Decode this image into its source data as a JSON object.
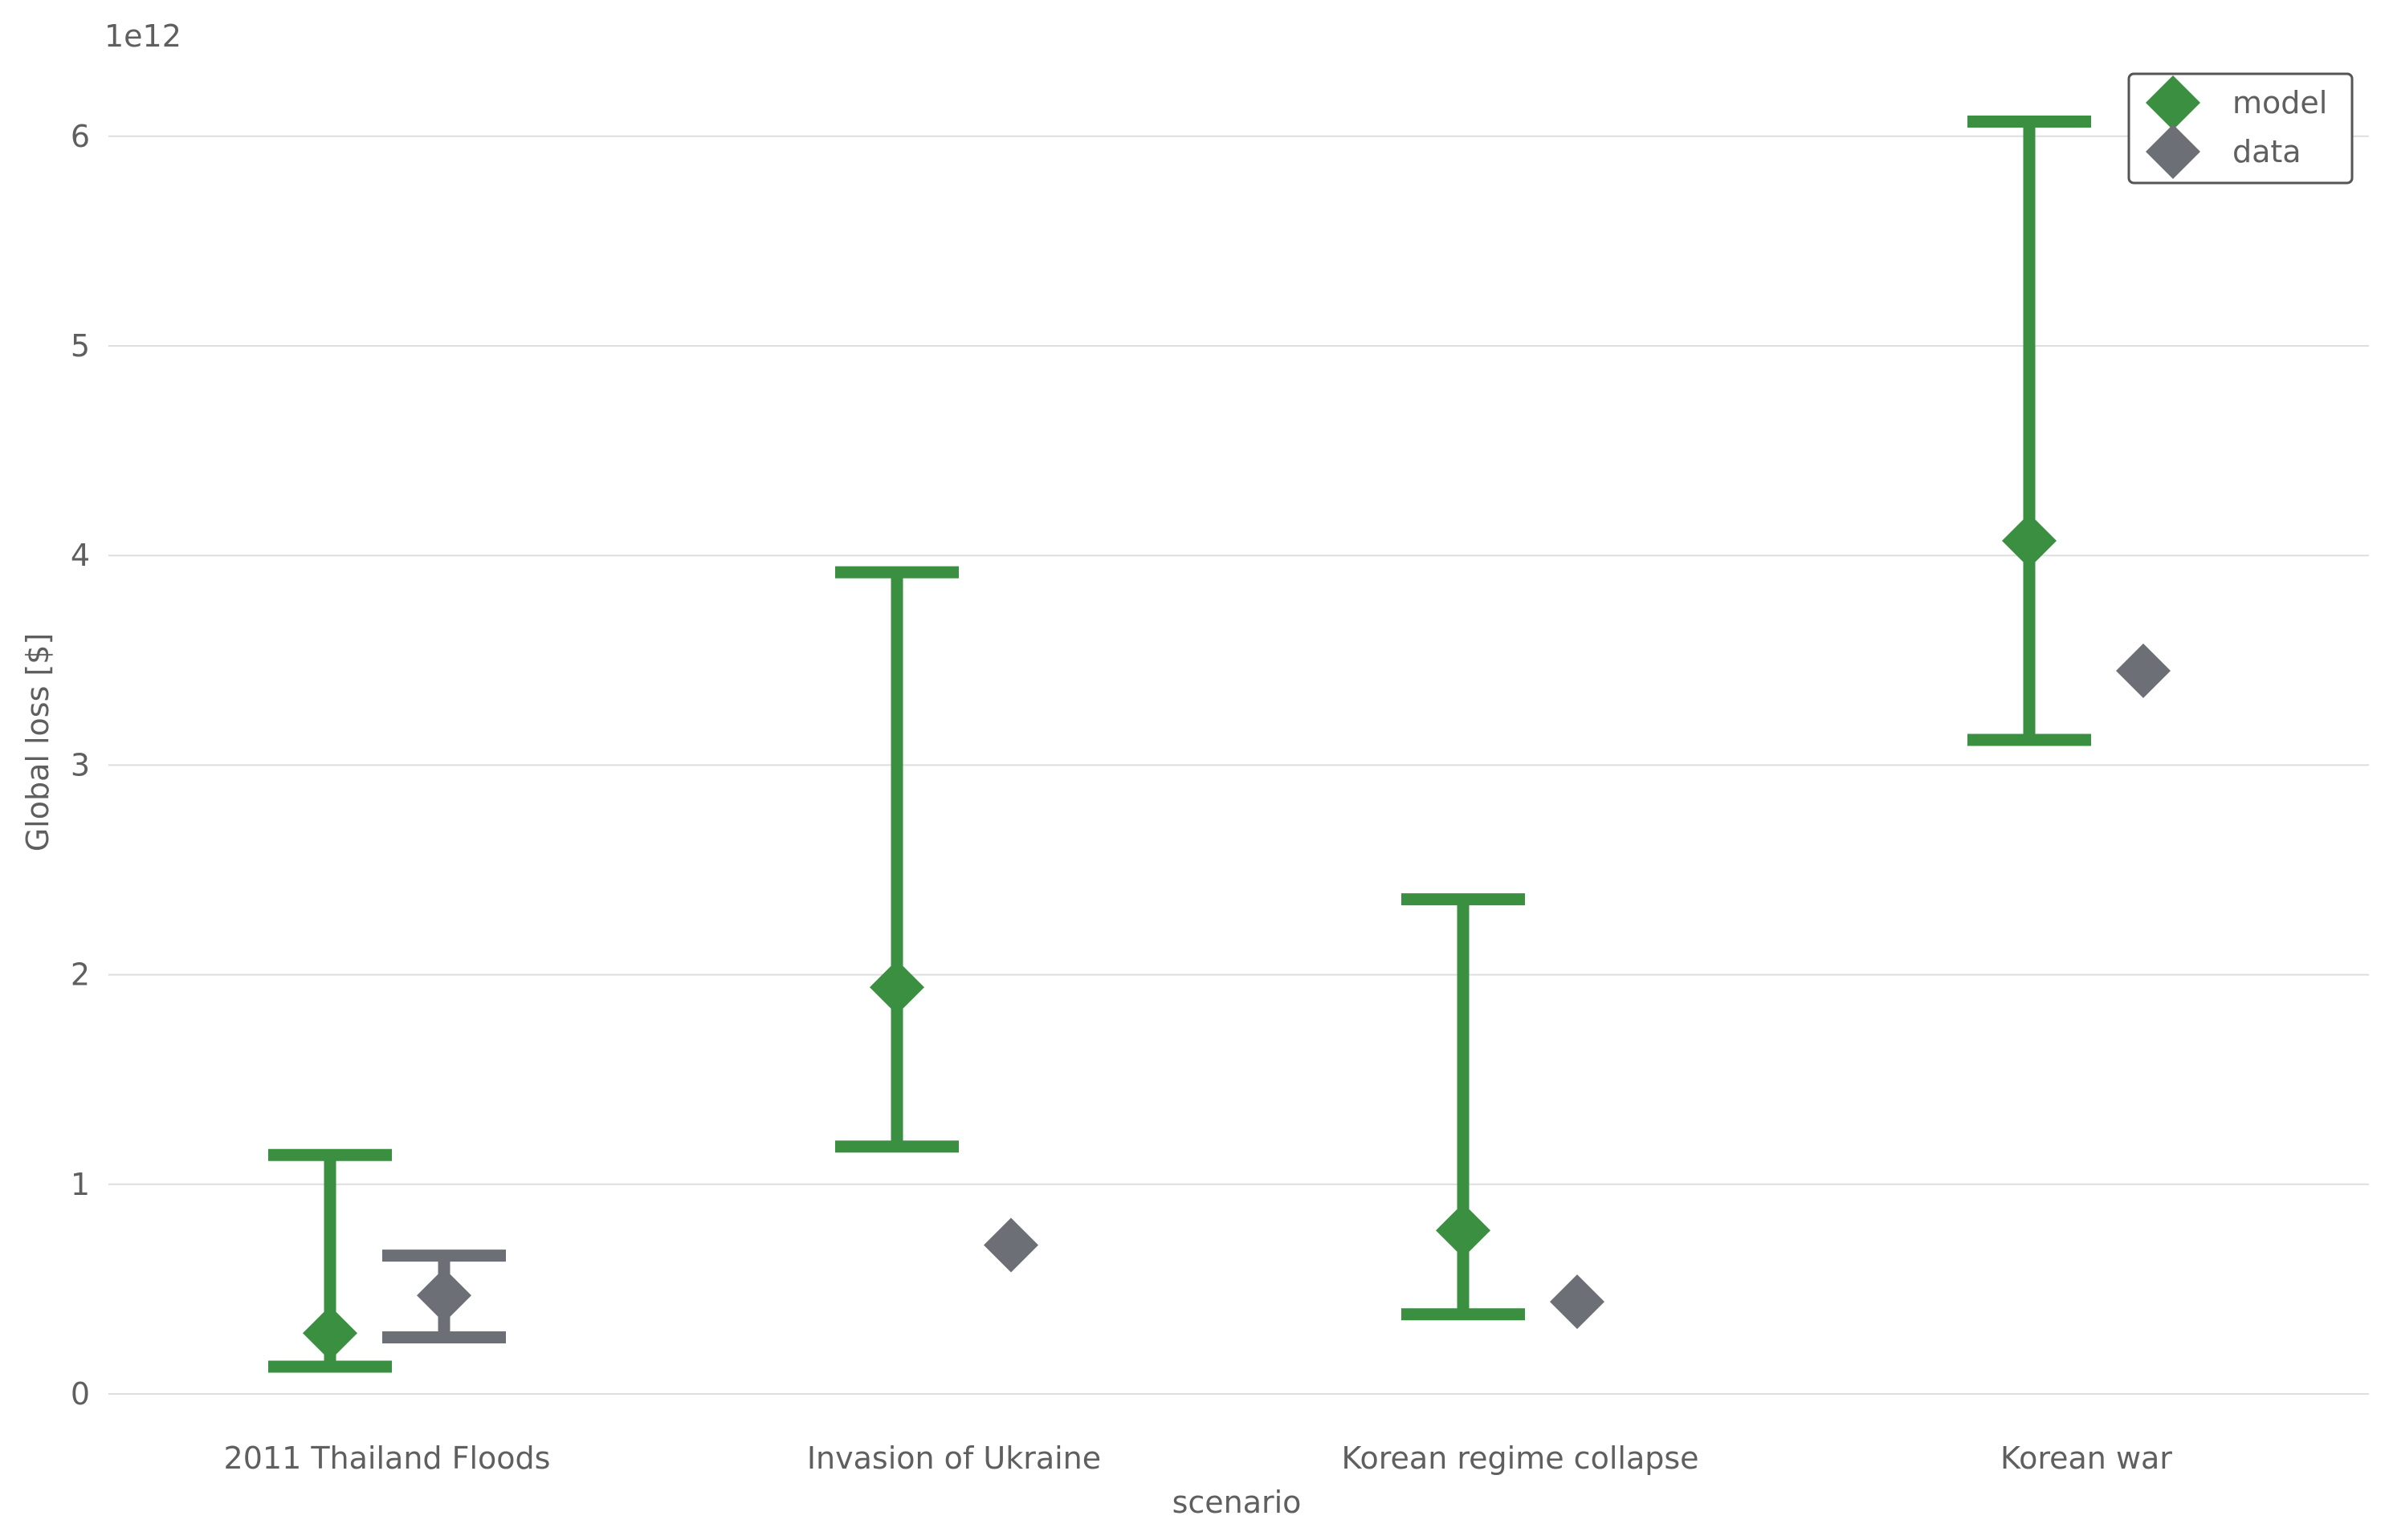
{
  "chart_data": {
    "type": "scatter",
    "xlabel": "scenario",
    "ylabel": "Global loss [$]",
    "y_offset_label": "1e12",
    "y_scale_factor": 1000000000000,
    "ylim": [
      -100000000000,
      6450000000000
    ],
    "yticks": [
      0,
      1000000000000,
      2000000000000,
      3000000000000,
      4000000000000,
      5000000000000,
      6000000000000
    ],
    "ytick_labels": [
      "0",
      "1",
      "2",
      "3",
      "4",
      "5",
      "6"
    ],
    "grid": true,
    "legend_placement": "top-right",
    "categories": [
      "2011 Thailand Floods",
      "Invasion of Ukraine",
      "Korean regime collapse",
      "Korean war"
    ],
    "series": [
      {
        "name": "model",
        "color": "#3a8f40",
        "marker": "diamond",
        "values": [
          290000000000,
          1940000000000,
          780000000000,
          4070000000000
        ],
        "error_low": [
          130000000000,
          1180000000000,
          380000000000,
          3120000000000
        ],
        "error_high": [
          1140000000000,
          3920000000000,
          2360000000000,
          6070000000000
        ]
      },
      {
        "name": "data",
        "color": "#6c6f75",
        "marker": "diamond",
        "values": [
          470000000000,
          710000000000,
          440000000000,
          3450000000000
        ],
        "error_low": [
          270000000000,
          null,
          null,
          null
        ],
        "error_high": [
          660000000000,
          null,
          null,
          null
        ]
      }
    ]
  }
}
